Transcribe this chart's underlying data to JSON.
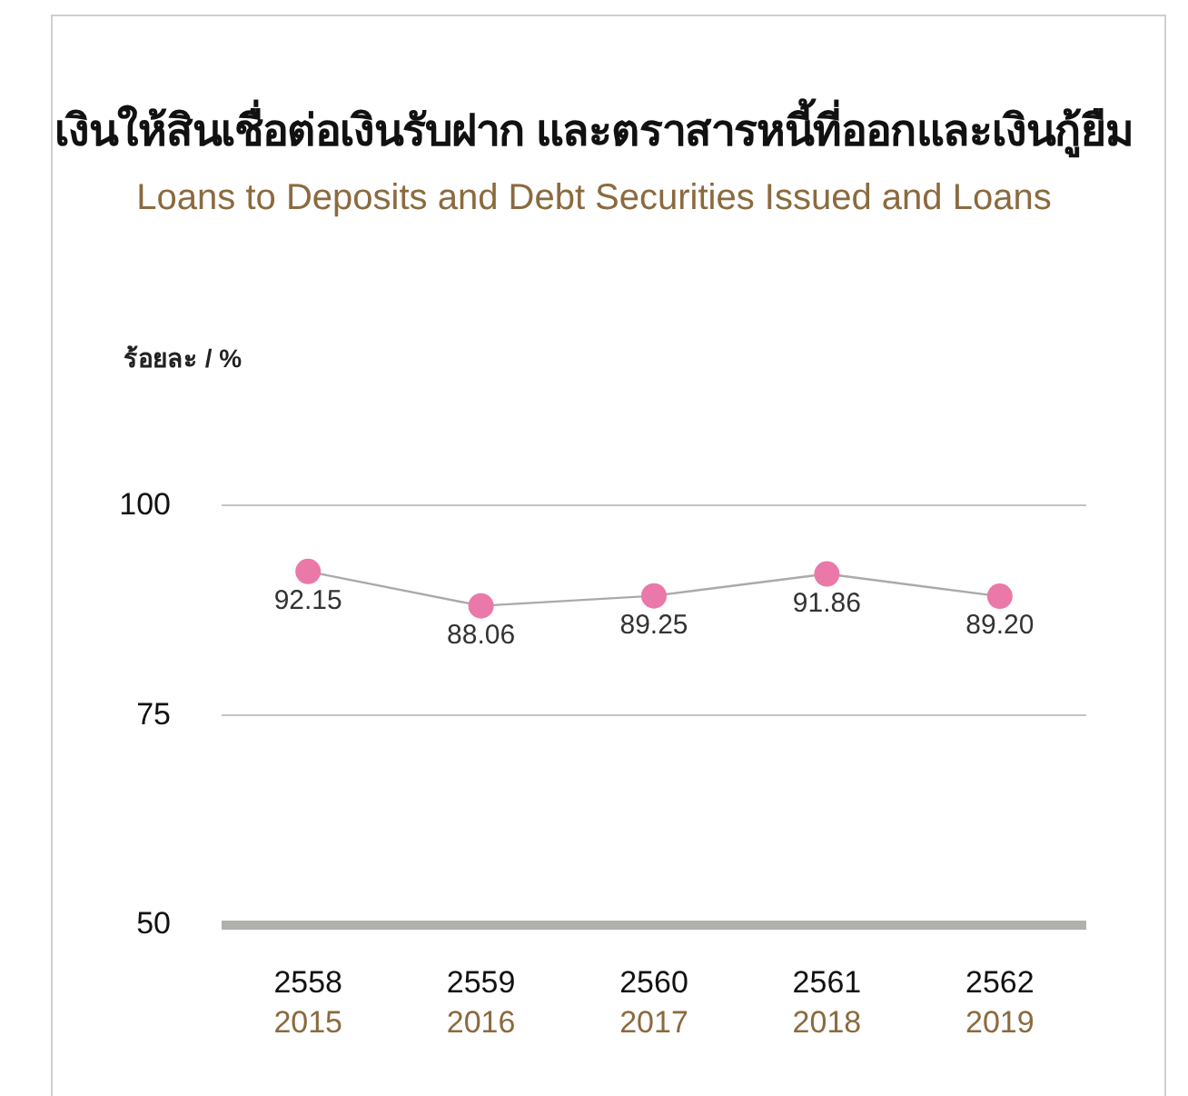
{
  "chart_data": {
    "type": "line",
    "title": "เงินให้สินเชื่อต่อเงินรับฝาก และตราสารหนี้ที่ออกและเงินกู้ยืม",
    "subtitle": "Loans to Deposits and Debt Securities Issued and Loans",
    "ylabel": "ร้อยละ / %",
    "categories": [
      "2558\n2015",
      "2559\n2016",
      "2560\n2017",
      "2561\n2018",
      "2562\n2019"
    ],
    "series": [
      {
        "color": "#aaaaaa",
        "colors": [
          "#ea78a8",
          "#ea78a8",
          "#ea78a8",
          "#ea78a8",
          "#ea78a8"
        ],
        "values": [
          92.15,
          88.06,
          89.25,
          91.86,
          89.2
        ],
        "value_labels": [
          "92.15",
          "88.06",
          "89.25",
          "91.86",
          "89.20"
        ]
      }
    ],
    "marker": "circle",
    "ylim": [
      50,
      100
    ],
    "yticks": [
      50,
      75,
      100
    ],
    "grid": "y",
    "legend": false
  }
}
